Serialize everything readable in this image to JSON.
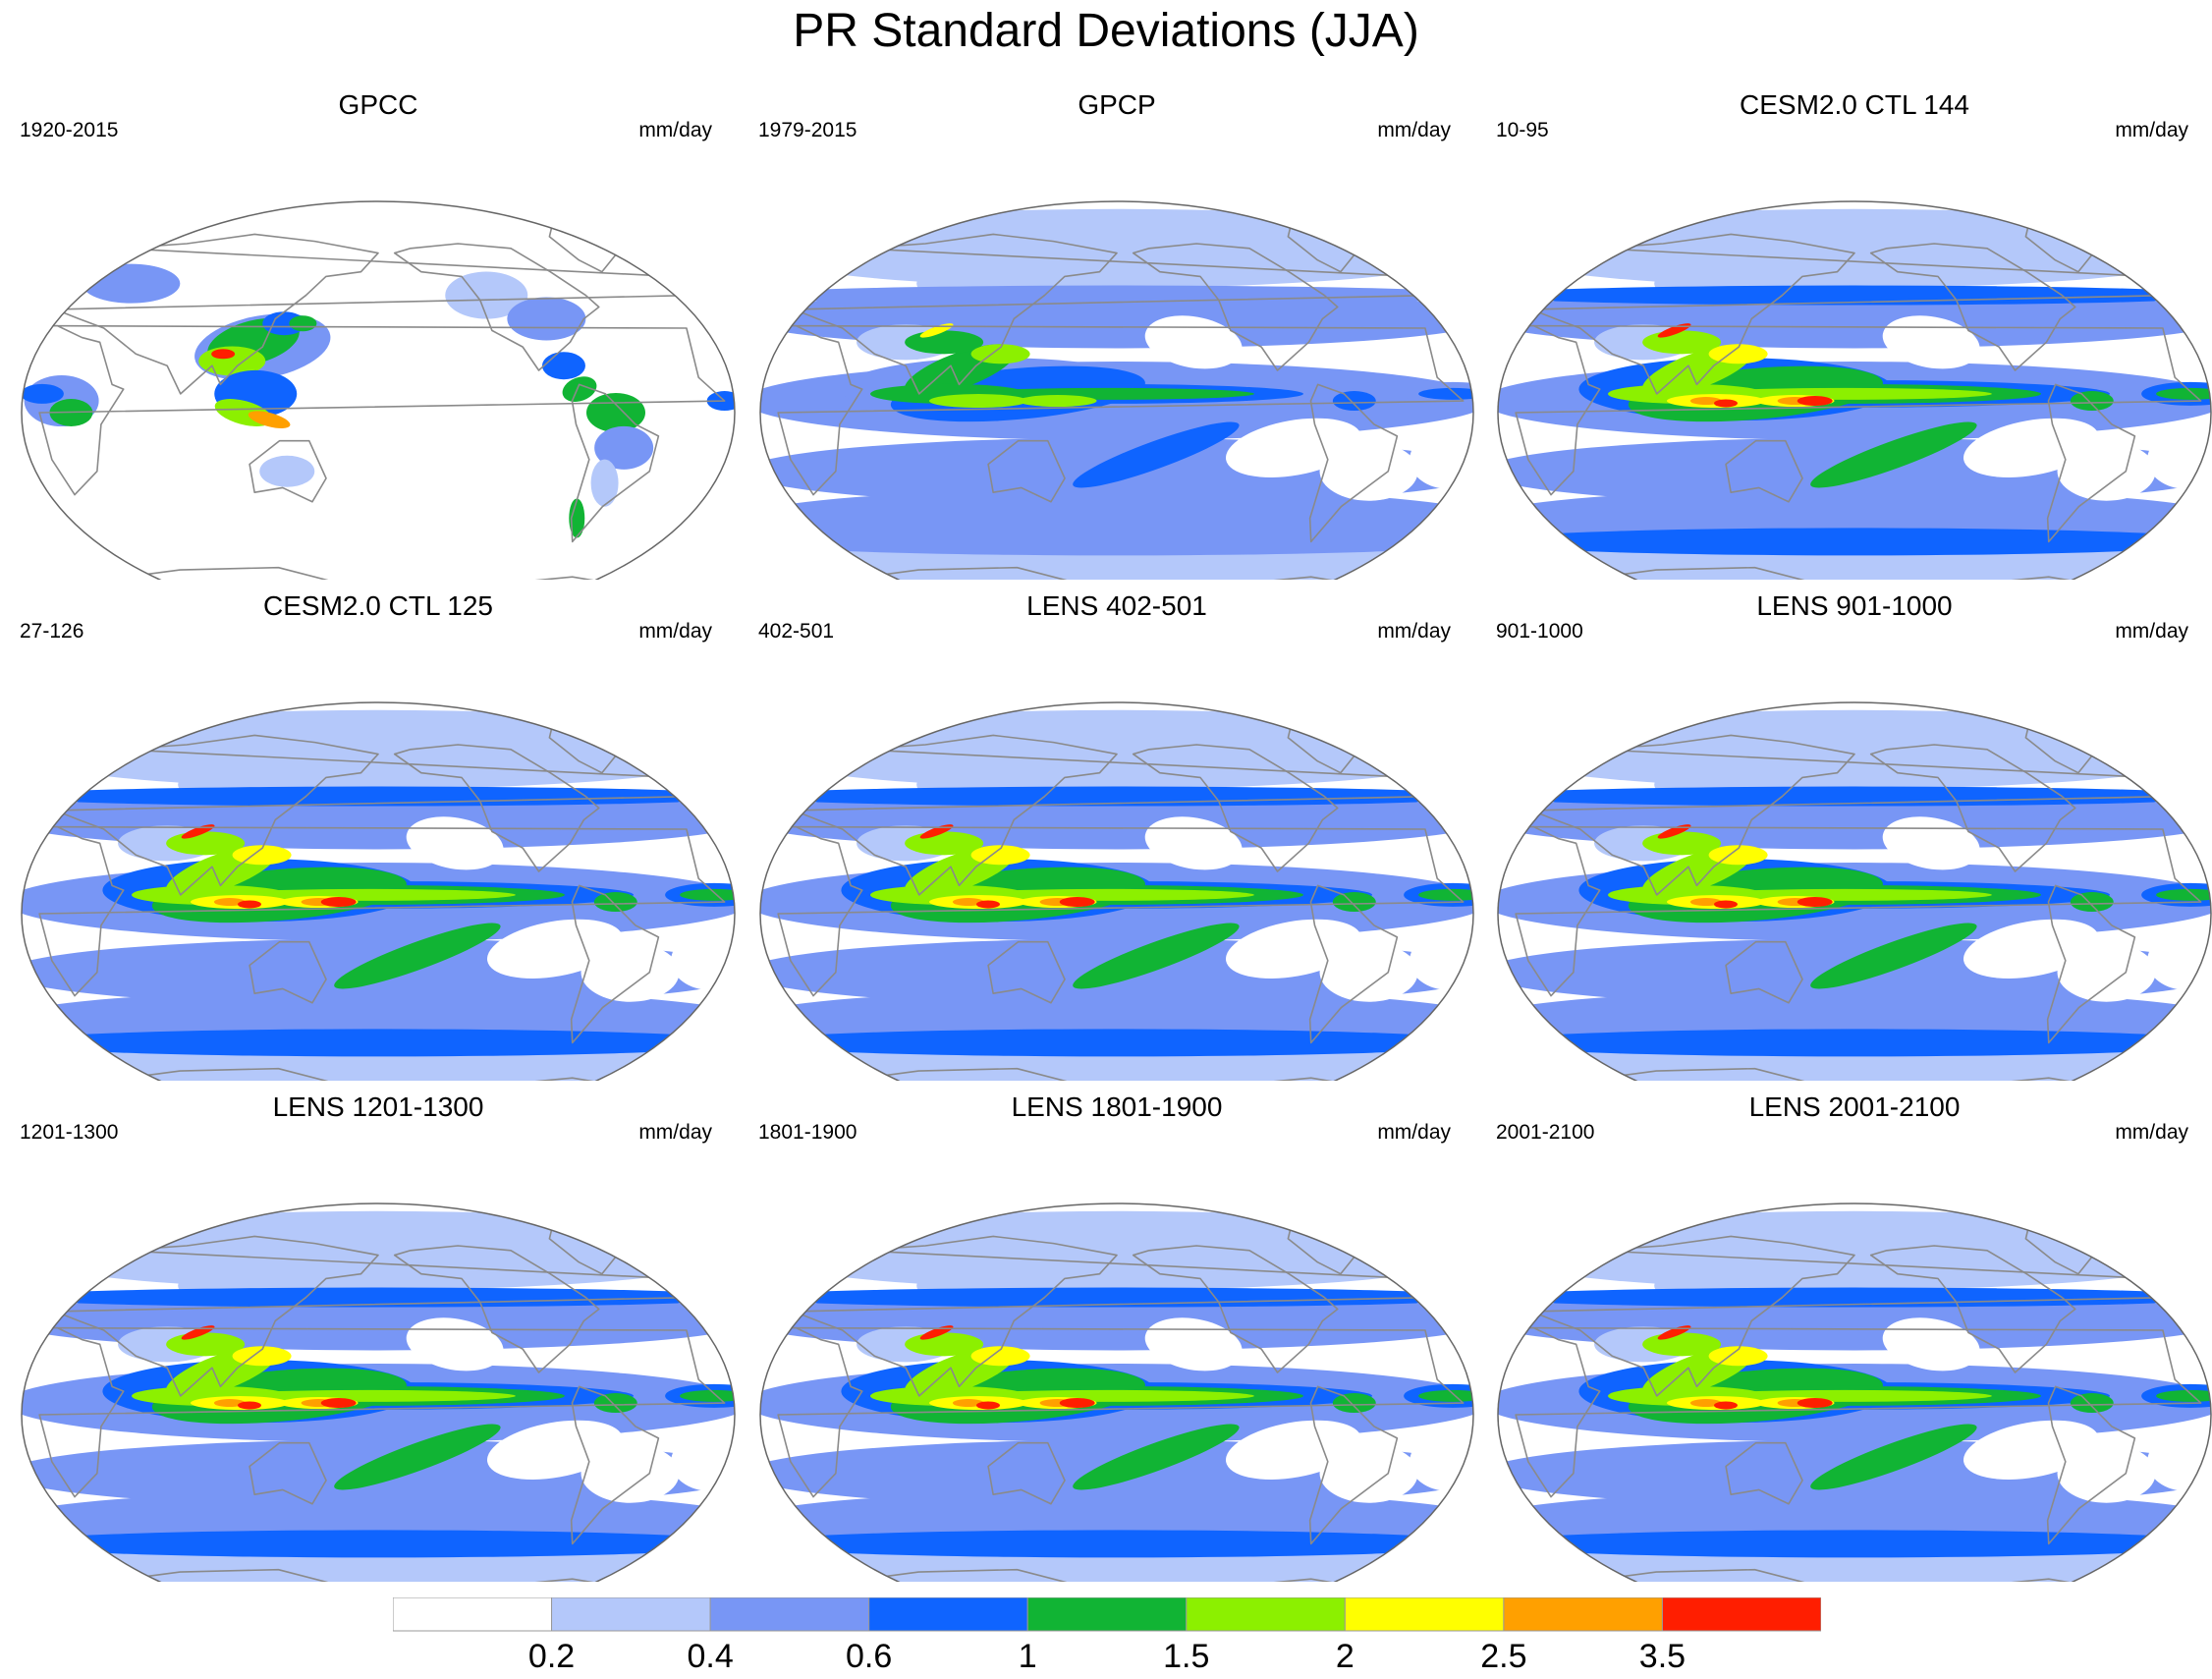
{
  "figure": {
    "title": "PR Standard Deviations (JJA)"
  },
  "panels": [
    {
      "title": "GPCC",
      "years": "1920-2015",
      "units": "mm/day",
      "coverage": "land",
      "intensity": 0.85
    },
    {
      "title": "GPCP",
      "years": "1979-2015",
      "units": "mm/day",
      "coverage": "global",
      "intensity": 0.78
    },
    {
      "title": "CESM2.0 CTL 144",
      "years": "10-95",
      "units": "mm/day",
      "coverage": "global",
      "intensity": 1.0
    },
    {
      "title": "CESM2.0 CTL 125",
      "years": "27-126",
      "units": "mm/day",
      "coverage": "global",
      "intensity": 1.0
    },
    {
      "title": "LENS 402-501",
      "years": "402-501",
      "units": "mm/day",
      "coverage": "global",
      "intensity": 1.0
    },
    {
      "title": "LENS 901-1000",
      "years": "901-1000",
      "units": "mm/day",
      "coverage": "global",
      "intensity": 1.0
    },
    {
      "title": "LENS 1201-1300",
      "years": "1201-1300",
      "units": "mm/day",
      "coverage": "global",
      "intensity": 1.0
    },
    {
      "title": "LENS 1801-1900",
      "years": "1801-1900",
      "units": "mm/day",
      "coverage": "global",
      "intensity": 1.0
    },
    {
      "title": "LENS 2001-2100",
      "years": "2001-2100",
      "units": "mm/day",
      "coverage": "global",
      "intensity": 1.0
    }
  ],
  "colorbar": {
    "colors": [
      "#ffffff",
      "#b4c8fa",
      "#7896f5",
      "#0f64ff",
      "#11b434",
      "#8cf000",
      "#ffff00",
      "#ffa000",
      "#ff1e00"
    ],
    "labels": [
      "0.2",
      "0.4",
      "0.6",
      "1",
      "1.5",
      "2",
      "2.5",
      "3.5"
    ]
  }
}
